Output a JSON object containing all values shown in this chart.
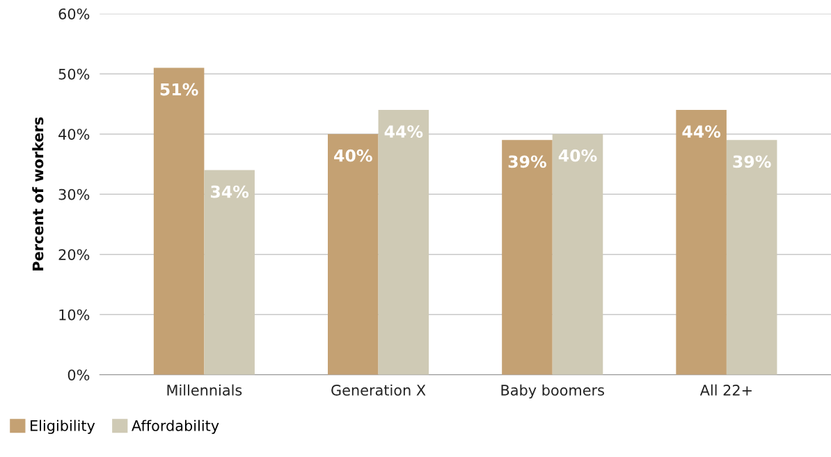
{
  "chart_data": {
    "type": "bar",
    "ylabel": "Percent of workers",
    "categories": [
      "Millennials",
      "Generation X",
      "Baby boomers",
      "All 22+"
    ],
    "series": [
      {
        "name": "Eligibility",
        "color": "#c4a173",
        "values": [
          51,
          40,
          39,
          44
        ],
        "value_labels": [
          "51%",
          "40%",
          "39%",
          "44%"
        ]
      },
      {
        "name": "Affordability",
        "color": "#cfcab5",
        "values": [
          34,
          44,
          40,
          39
        ],
        "value_labels": [
          "34%",
          "44%",
          "40%",
          "39%"
        ]
      }
    ],
    "ylim": [
      0,
      60
    ],
    "yticks": [
      {
        "value": 0,
        "label": "0%"
      },
      {
        "value": 10,
        "label": "10%"
      },
      {
        "value": 20,
        "label": "20%"
      },
      {
        "value": 30,
        "label": "30%"
      },
      {
        "value": 40,
        "label": "40%"
      },
      {
        "value": 50,
        "label": "50%"
      },
      {
        "value": 60,
        "label": "60%"
      }
    ],
    "grid": "y",
    "legend": "bottom left"
  }
}
